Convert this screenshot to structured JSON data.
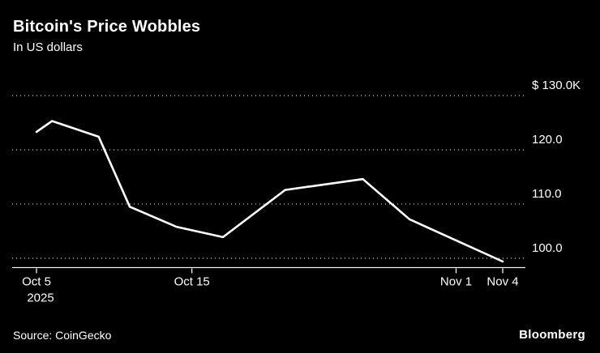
{
  "header": {
    "title": "Bitcoin's Price Wobbles",
    "subtitle": "In US dollars"
  },
  "footer": {
    "source": "Source: CoinGecko",
    "brand": "Bloomberg"
  },
  "colors": {
    "background": "#000000",
    "text": "#ffffff",
    "line": "#ffffff",
    "grid": "#c9c9c9",
    "axis": "#f2f2f2"
  },
  "chart_data": {
    "type": "line",
    "title": "Bitcoin's Price Wobbles",
    "subtitle": "In US dollars",
    "unit": "thousand US dollars",
    "x": [
      "Oct 5",
      "Oct 6",
      "Oct 9",
      "Oct 11",
      "Oct 14",
      "Oct 17",
      "Oct 21",
      "Oct 26",
      "Oct 29",
      "Nov 1",
      "Nov 4"
    ],
    "day_offsets": [
      0,
      1,
      4,
      6,
      9,
      12,
      16,
      21,
      24,
      27,
      30
    ],
    "values": [
      123.3,
      125.3,
      122.4,
      109.5,
      105.8,
      103.9,
      112.6,
      114.6,
      107.2,
      103.3,
      99.4
    ],
    "ylim": [
      97,
      131
    ],
    "grid": "horizontal dotted",
    "legend": "none",
    "y_ticks": [
      {
        "value": 130,
        "label": "$ 130.0K"
      },
      {
        "value": 120,
        "label": "120.0"
      },
      {
        "value": 110,
        "label": "110.0"
      },
      {
        "value": 100,
        "label": "100.0"
      }
    ],
    "x_ticks": [
      {
        "label": "Oct 5",
        "sub": "2025",
        "day": 0
      },
      {
        "label": "Oct 15",
        "sub": "",
        "day": 10
      },
      {
        "label": "Nov 1",
        "sub": "",
        "day": 27
      },
      {
        "label": "Nov 4",
        "sub": "",
        "day": 30
      }
    ]
  }
}
